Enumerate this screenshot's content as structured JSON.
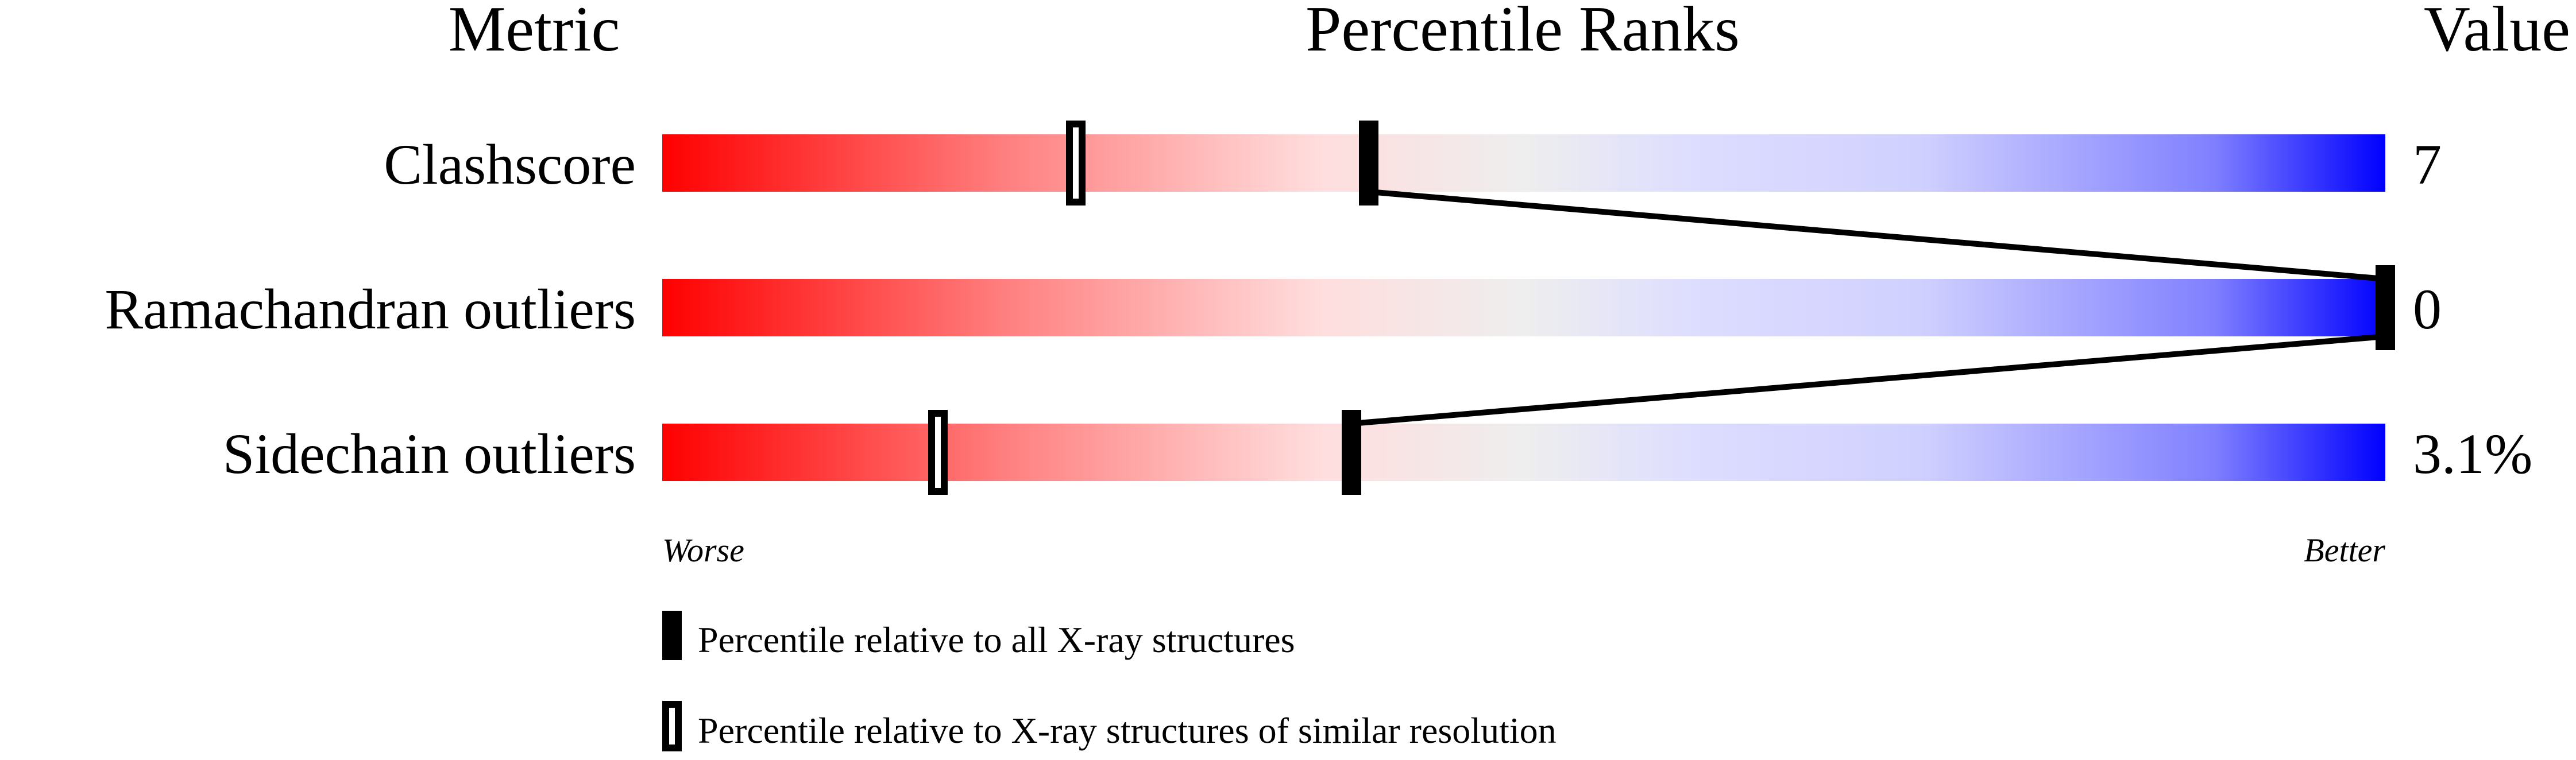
{
  "chart_data": {
    "type": "bar",
    "headers": {
      "metric": "Metric",
      "ranks": "Percentile Ranks",
      "value": "Value"
    },
    "xlim": [
      0,
      100
    ],
    "axis_labels": {
      "worse": "Worse",
      "better": "Better"
    },
    "gradient_colors": [
      "#ff0000",
      "#ff8080",
      "#ffdddd",
      "#eeeeee",
      "#ddddff",
      "#d0d0ff",
      "#8080ff",
      "#0000ff"
    ],
    "metrics": [
      {
        "name": "Clashscore",
        "value": "7",
        "percentile_all": 41,
        "percentile_similar": 24
      },
      {
        "name": "Ramachandran outliers",
        "value": "0",
        "percentile_all": 100,
        "percentile_similar": 100
      },
      {
        "name": "Sidechain outliers",
        "value": "3.1%",
        "percentile_all": 40,
        "percentile_similar": 16
      }
    ],
    "legend": [
      {
        "marker": "filled",
        "label": "Percentile relative to all X-ray structures"
      },
      {
        "marker": "hollow",
        "label": "Percentile relative to X-ray structures of similar resolution"
      }
    ]
  }
}
